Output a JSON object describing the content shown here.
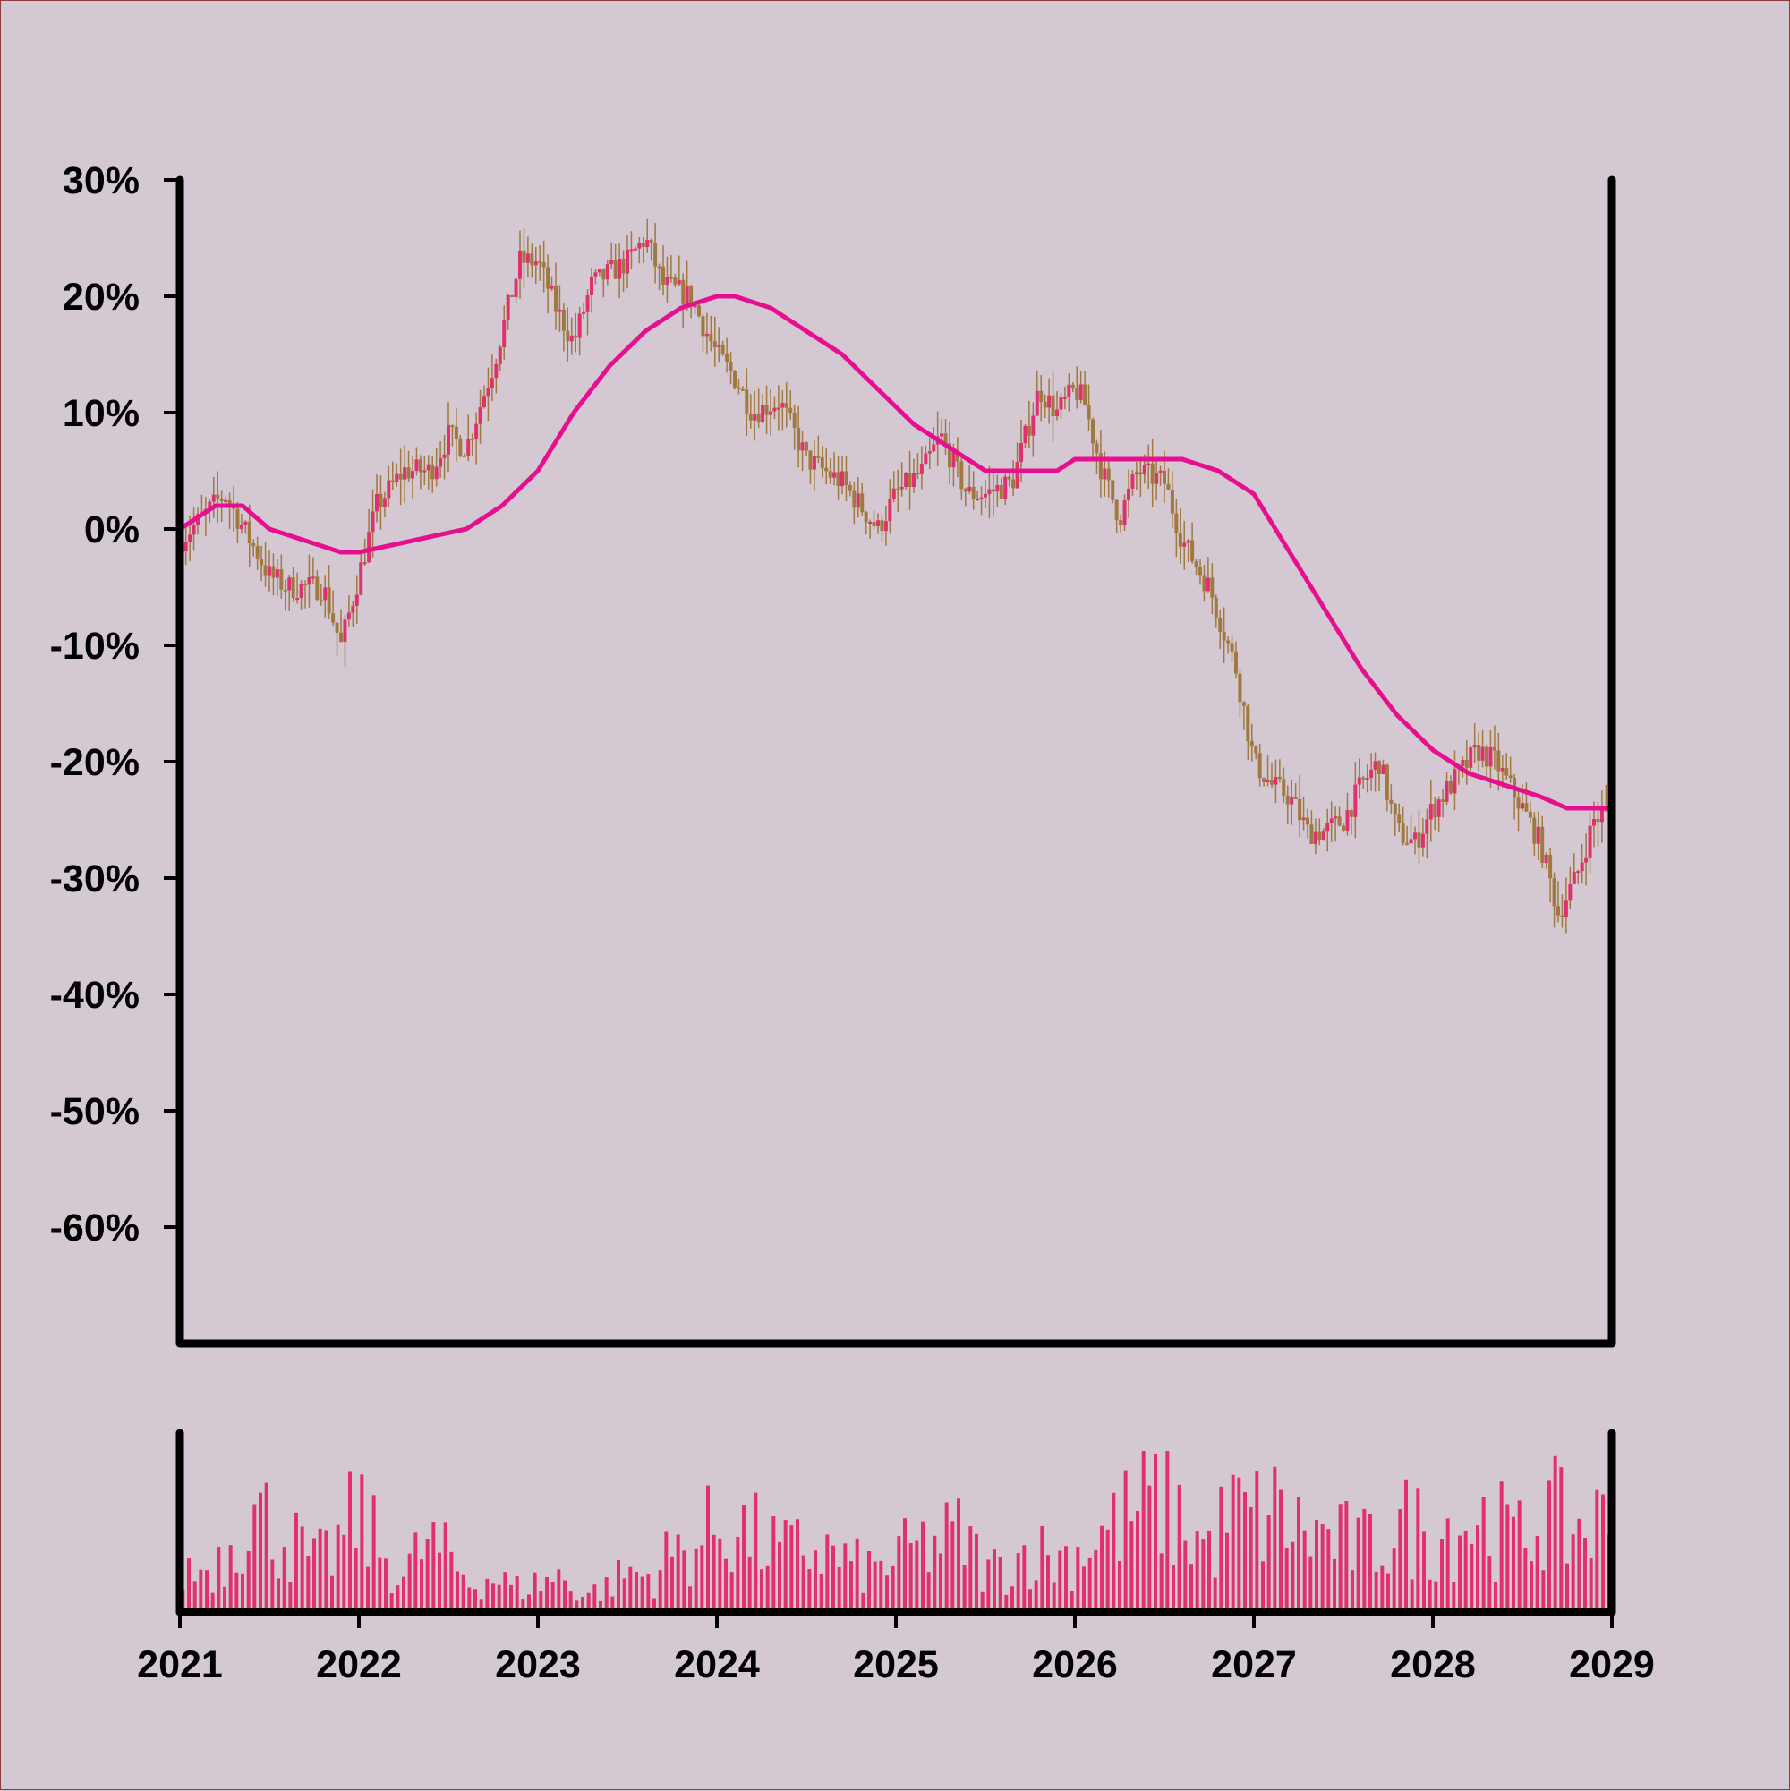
{
  "chart_data": [
    {
      "type": "candlestick",
      "title": "",
      "xlabel": "",
      "ylabel": "",
      "ylim": [
        -70,
        30
      ],
      "y_tick_values": [
        30,
        20,
        10,
        0,
        -10,
        -20,
        -30,
        -40,
        -50,
        -60
      ],
      "y_tick_labels": [
        "30%",
        "20%",
        "10%",
        "0%",
        "-10%",
        "-20%",
        "-30%",
        "-40%",
        "-50%",
        "-60%"
      ],
      "x_tick_labels": [
        "2021",
        "2022",
        "2023",
        "2024",
        "2025",
        "2026",
        "2027",
        "2028",
        "2029"
      ],
      "xlim": [
        2021,
        2029
      ],
      "grid": false,
      "legend": "none",
      "colors": {
        "up": "#e0316e",
        "down": "#a07840",
        "moving_average": "#e6108f"
      },
      "price_series": {
        "x": [
          2021.0,
          2021.25,
          2021.5,
          2021.6,
          2021.8,
          2021.9,
          2022.0,
          2022.1,
          2022.25,
          2022.4,
          2022.5,
          2022.6,
          2022.75,
          2022.9,
          2023.0,
          2023.1,
          2023.2,
          2023.3,
          2023.5,
          2023.6,
          2023.7,
          2023.85,
          2024.0,
          2024.1,
          2024.2,
          2024.35,
          2024.5,
          2024.7,
          2024.8,
          2024.9,
          2025.0,
          2025.15,
          2025.25,
          2025.4,
          2025.5,
          2025.65,
          2025.8,
          2025.9,
          2026.0,
          2026.05,
          2026.15,
          2026.25,
          2026.35,
          2026.5,
          2026.6,
          2026.75,
          2026.9,
          2027.0,
          2027.1,
          2027.2,
          2027.3,
          2027.4,
          2027.5,
          2027.6,
          2027.7,
          2027.8,
          2027.9,
          2028.0,
          2028.1,
          2028.25,
          2028.35,
          2028.5,
          2028.6,
          2028.7,
          2028.8,
          2028.9,
          2029.0
        ],
        "y": [
          -1,
          3,
          -4,
          -5,
          -5,
          -10,
          -4,
          2,
          5,
          5,
          8,
          7,
          14,
          23,
          23,
          19,
          16,
          21,
          23,
          25,
          21,
          20,
          15,
          13,
          10,
          11,
          6,
          4,
          2,
          0,
          3,
          5,
          8,
          3,
          3,
          4,
          12,
          10,
          12,
          11,
          5,
          1,
          5,
          4,
          -1,
          -5,
          -12,
          -20,
          -22,
          -23,
          -26,
          -26,
          -25,
          -22,
          -20,
          -26,
          -27,
          -24,
          -22,
          -19,
          -20,
          -24,
          -27,
          -33,
          -30,
          -25,
          -24
        ]
      },
      "moving_average": {
        "x": [
          2021.0,
          2021.2,
          2021.35,
          2021.5,
          2021.7,
          2021.9,
          2022.0,
          2022.3,
          2022.6,
          2022.8,
          2023.0,
          2023.2,
          2023.4,
          2023.6,
          2023.8,
          2024.0,
          2024.1,
          2024.3,
          2024.5,
          2024.7,
          2024.9,
          2025.1,
          2025.3,
          2025.5,
          2025.7,
          2025.9,
          2026.0,
          2026.2,
          2026.4,
          2026.6,
          2026.8,
          2027.0,
          2027.2,
          2027.4,
          2027.6,
          2027.8,
          2028.0,
          2028.2,
          2028.4,
          2028.6,
          2028.75,
          2028.9,
          2029.0
        ],
        "y": [
          0,
          2,
          2,
          0,
          -1,
          -2,
          -2,
          -1,
          0,
          2,
          5,
          10,
          14,
          17,
          19,
          20,
          20,
          19,
          17,
          15,
          12,
          9,
          7,
          5,
          5,
          5,
          6,
          6,
          6,
          6,
          5,
          3,
          -2,
          -7,
          -12,
          -16,
          -19,
          -21,
          -22,
          -23,
          -24,
          -24,
          -24
        ]
      }
    },
    {
      "type": "bar",
      "title": "",
      "series": [
        {
          "values": [
            0.35,
            0.35,
            0.5,
            0.9,
            0.75,
            0.6,
            0.4,
            0.55,
            0.85,
            0.5,
            0.3,
            0.6,
            0.45,
            0.25,
            0.3,
            0.2,
            0.25,
            0.3,
            0.15,
            0.2,
            0.35,
            0.3,
            0.5,
            0.55,
            0.75,
            0.7,
            0.6,
            0.5,
            0.55,
            0.5,
            0.4,
            0.35,
            0.45,
            0.55,
            0.6,
            0.65,
            0.35,
            0.4,
            0.55,
            0.45,
            0.5,
            0.65,
            0.75,
            0.9,
            0.95,
            0.7,
            0.55,
            0.85,
            0.8,
            0.85,
            0.7,
            0.65,
            0.6,
            0.55,
            0.65,
            0.75,
            0.65,
            0.75,
            0.8,
            0.7,
            0.6,
            0.9,
            0.7,
            0.75
          ]
        }
      ],
      "x": [
        2021.0,
        2021.125,
        2021.25,
        2021.375,
        2021.5,
        2021.625,
        2021.75,
        2021.875,
        2022.0,
        2022.125,
        2022.25,
        2022.375,
        2022.5,
        2022.625,
        2022.75,
        2022.875,
        2023.0,
        2023.125,
        2023.25,
        2023.375,
        2023.5,
        2023.625,
        2023.75,
        2023.875,
        2024.0,
        2024.125,
        2024.25,
        2024.375,
        2024.5,
        2024.625,
        2024.75,
        2024.875,
        2025.0,
        2025.125,
        2025.25,
        2025.375,
        2025.5,
        2025.625,
        2025.75,
        2025.875,
        2026.0,
        2026.125,
        2026.25,
        2026.375,
        2026.5,
        2026.625,
        2026.75,
        2026.875,
        2027.0,
        2027.125,
        2027.25,
        2027.375,
        2027.5,
        2027.625,
        2027.75,
        2027.875,
        2028.0,
        2028.125,
        2028.25,
        2028.375,
        2028.5,
        2028.625,
        2028.75,
        2028.875
      ],
      "ylim": [
        0,
        1
      ],
      "color": "#e0316e"
    }
  ]
}
